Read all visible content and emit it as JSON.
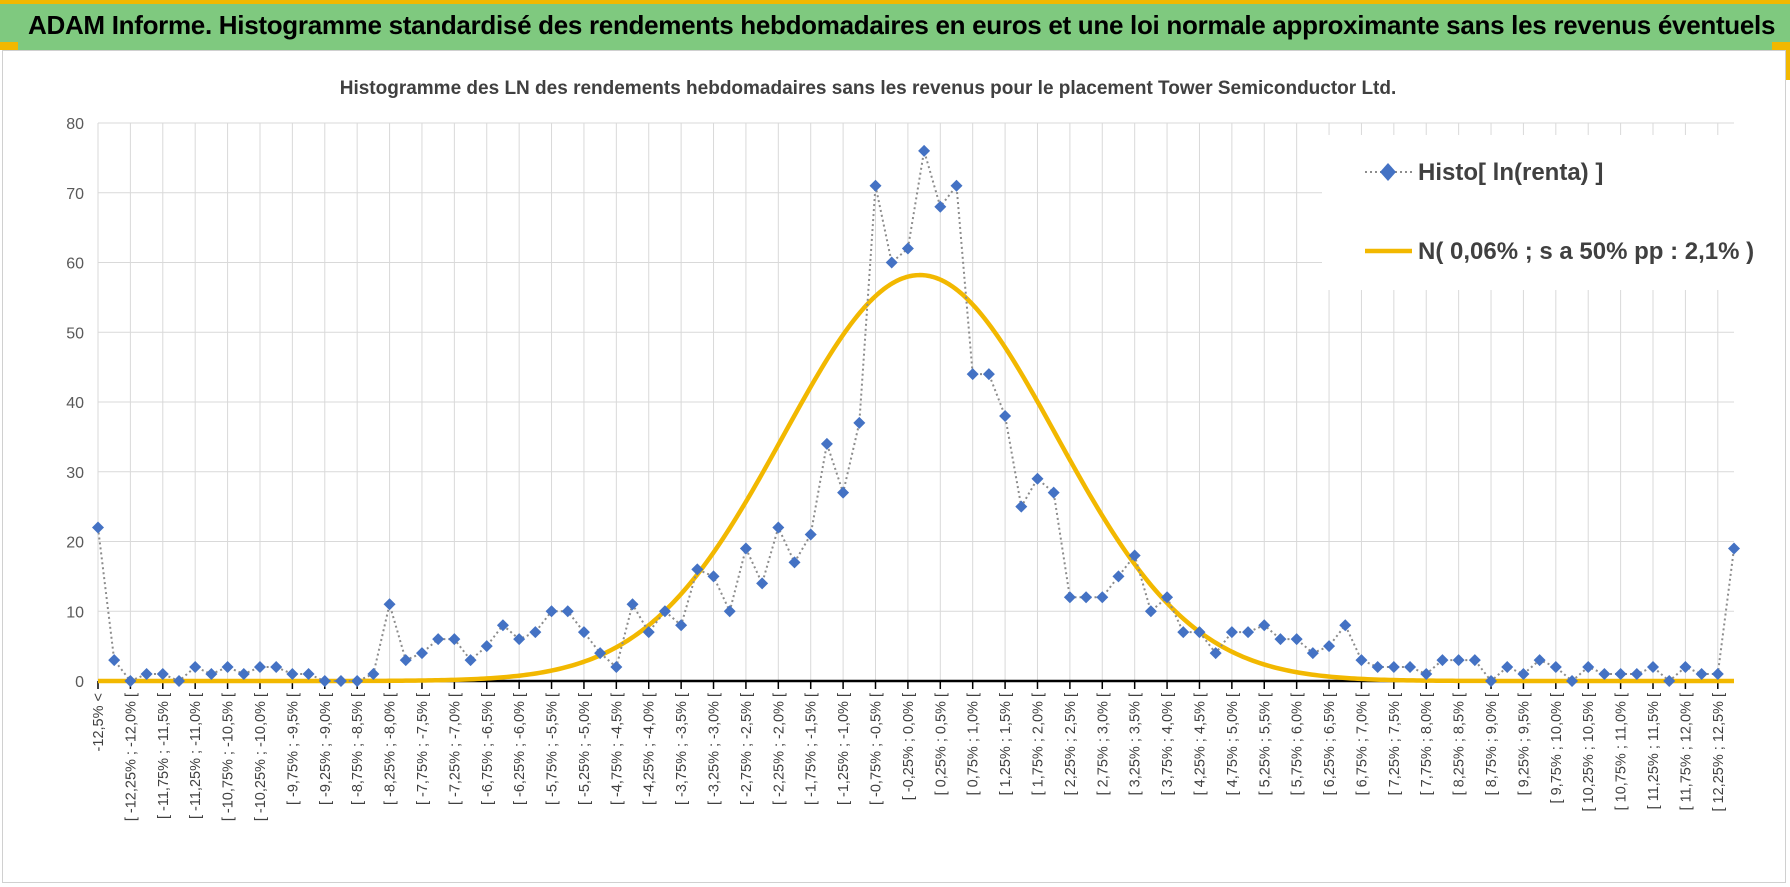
{
  "header": {
    "title": "ADAM Informe. Histogramme standardisé des rendements hebdomadaires en euros et une loi normale approximante sans les revenus éventuels"
  },
  "colors": {
    "header_bg": "#7fc97f",
    "accent": "#f2b800",
    "histo": "#4472c4",
    "normal": "#f2b800",
    "grid": "#d9d9d9"
  },
  "chart_data": {
    "type": "line",
    "title": "Histogramme des LN des rendements hebdomadaires sans les revenus pour le placement Tower Semiconductor Ltd.",
    "xlabel": "",
    "ylabel": "",
    "ylim": [
      0,
      80
    ],
    "yticks": [
      0,
      10,
      20,
      30,
      40,
      50,
      60,
      70,
      80
    ],
    "grid": true,
    "legend_position": "top-right",
    "categories": [
      "-12,5% <",
      "[ -12,5% ; -12,25% [",
      "[ -12,25% ; -12,0% [",
      "[ -12,0% ; -11,75% [",
      "[ -11,75% ; -11,5% [",
      "[ -11,5% ; -11,25% [",
      "[ -11,25% ; -11,0% [",
      "[ -11,0% ; -10,75% [",
      "[ -10,75% ; -10,5% [",
      "[ -10,5% ; -10,25% [",
      "[ -10,25% ; -10,0% [",
      "[ -10,0% ; -9,75% [",
      "[ -9,75% ; -9,5% [",
      "[ -9,5% ; -9,25% [",
      "[ -9,25% ; -9,0% [",
      "[ -9,0% ; -8,75% [",
      "[ -8,75% ; -8,5% [",
      "[ -8,5% ; -8,25% [",
      "[ -8,25% ; -8,0% [",
      "[ -8,0% ; -7,75% [",
      "[ -7,75% ; -7,5% [",
      "[ -7,5% ; -7,25% [",
      "[ -7,25% ; -7,0% [",
      "[ -7,0% ; -6,75% [",
      "[ -6,75% ; -6,5% [",
      "[ -6,5% ; -6,25% [",
      "[ -6,25% ; -6,0% [",
      "[ -6,0% ; -5,75% [",
      "[ -5,75% ; -5,5% [",
      "[ -5,5% ; -5,25% [",
      "[ -5,25% ; -5,0% [",
      "[ -5,0% ; -4,75% [",
      "[ -4,75% ; -4,5% [",
      "[ -4,5% ; -4,25% [",
      "[ -4,25% ; -4,0% [",
      "[ -4,0% ; -3,75% [",
      "[ -3,75% ; -3,5% [",
      "[ -3,5% ; -3,25% [",
      "[ -3,25% ; -3,0% [",
      "[ -3,0% ; -2,75% [",
      "[ -2,75% ; -2,5% [",
      "[ -2,5% ; -2,25% [",
      "[ -2,25% ; -2,0% [",
      "[ -2,0% ; -1,75% [",
      "[ -1,75% ; -1,5% [",
      "[ -1,5% ; -1,25% [",
      "[ -1,25% ; -1,0% [",
      "[ -1,0% ; -0,75% [",
      "[ -0,75% ; -0,5% [",
      "[ -0,5% ; -0,25% [",
      "[ -0,25% ; 0,0% [",
      "[ 0,0% ; 0,25% [",
      "[ 0,25% ; 0,5% [",
      "[ 0,5% ; 0,75% [",
      "[ 0,75% ; 1,0% [",
      "[ 1,0% ; 1,25% [",
      "[ 1,25% ; 1,5% [",
      "[ 1,5% ; 1,75% [",
      "[ 1,75% ; 2,0% [",
      "[ 2,0% ; 2,25% [",
      "[ 2,25% ; 2,5% [",
      "[ 2,5% ; 2,75% [",
      "[ 2,75% ; 3,0% [",
      "[ 3,0% ; 3,25% [",
      "[ 3,25% ; 3,5% [",
      "[ 3,5% ; 3,75% [",
      "[ 3,75% ; 4,0% [",
      "[ 4,0% ; 4,25% [",
      "[ 4,25% ; 4,5% [",
      "[ 4,5% ; 4,75% [",
      "[ 4,75% ; 5,0% [",
      "[ 5,0% ; 5,25% [",
      "[ 5,25% ; 5,5% [",
      "[ 5,5% ; 5,75% [",
      "[ 5,75% ; 6,0% [",
      "[ 6,0% ; 6,25% [",
      "[ 6,25% ; 6,5% [",
      "[ 6,5% ; 6,75% [",
      "[ 6,75% ; 7,0% [",
      "[ 7,0% ; 7,25% [",
      "[ 7,25% ; 7,5% [",
      "[ 7,5% ; 7,75% [",
      "[ 7,75% ; 8,0% [",
      "[ 8,0% ; 8,25% [",
      "[ 8,25% ; 8,5% [",
      "[ 8,5% ; 8,75% [",
      "[ 8,75% ; 9,0% [",
      "[ 9,0% ; 9,25% [",
      "[ 9,25% ; 9,5% [",
      "[ 9,5% ; 9,75% [",
      "[ 9,75% ; 10,0% [",
      "[ 10,0% ; 10,25% [",
      "[ 10,25% ; 10,5% [",
      "[ 10,5% ; 10,75% [",
      "[ 10,75% ; 11,0% [",
      "[ 11,0% ; 11,25% [",
      "[ 11,25% ; 11,5% [",
      "[ 11,5% ; 11,75% [",
      "[ 11,75% ; 12,0% [",
      "[ 12,0% ; 12,25% [",
      "[ 12,25% ; 12,5% [",
      "12,5% >"
    ],
    "series": [
      {
        "name": "Histo[ ln(renta) ]",
        "style": "dotted-diamond",
        "values": [
          22,
          3,
          0,
          1,
          1,
          0,
          2,
          1,
          2,
          1,
          2,
          2,
          1,
          1,
          0,
          0,
          0,
          1,
          11,
          3,
          4,
          6,
          6,
          3,
          5,
          8,
          6,
          7,
          10,
          10,
          7,
          4,
          2,
          11,
          7,
          10,
          8,
          16,
          15,
          10,
          19,
          14,
          22,
          17,
          21,
          34,
          27,
          37,
          71,
          60,
          62,
          76,
          68,
          71,
          44,
          44,
          38,
          25,
          29,
          27,
          12,
          12,
          12,
          15,
          18,
          10,
          12,
          7,
          7,
          4,
          7,
          7,
          8,
          6,
          6,
          4,
          5,
          8,
          3,
          2,
          2,
          2,
          1,
          3,
          3,
          3,
          0,
          2,
          1,
          3,
          2,
          0,
          2,
          1,
          1,
          1,
          2,
          0,
          2,
          1,
          1,
          19
        ]
      },
      {
        "name": "N( 0,06% ; s a 50% pp : 2,1% )",
        "style": "solid-line",
        "mean_pct": 0.06,
        "sd_pct": 2.1,
        "peak": 58.2
      }
    ]
  }
}
